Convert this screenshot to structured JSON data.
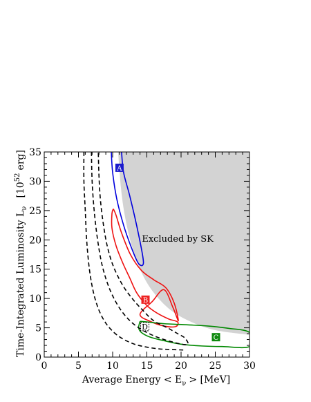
{
  "chart_data": {
    "type": "line",
    "xlabel": "Average Energy  < E",
    "xlabel_sub": "ν",
    "xlabel_unit": ">  [MeV]",
    "ylabel": "Time-Integrated Luminosity   L",
    "ylabel_sub": "ν",
    "ylabel_unit_open": "[10",
    "ylabel_unit_exp": "52",
    "ylabel_unit_close": "erg]",
    "xlim": [
      0,
      30
    ],
    "ylim": [
      0,
      35
    ],
    "x_ticks": [
      "0",
      "5",
      "10",
      "15",
      "20",
      "25",
      "30"
    ],
    "y_ticks": [
      "0",
      "5",
      "10",
      "15",
      "20",
      "25",
      "30",
      "35"
    ],
    "x_tick_values": [
      0,
      5,
      10,
      15,
      20,
      25,
      30
    ],
    "y_tick_values": [
      0,
      5,
      10,
      15,
      20,
      25,
      30,
      35
    ],
    "excluded_region": {
      "label": "Excluded by SK",
      "label_pos": [
        19.5,
        19.7
      ],
      "color": "#d3d3d3",
      "boundary": [
        [
          10.8,
          35
        ],
        [
          11.2,
          29
        ],
        [
          11.8,
          24
        ],
        [
          12.8,
          19
        ],
        [
          14.2,
          14.5
        ],
        [
          16.0,
          11.0
        ],
        [
          18.5,
          8.0
        ],
        [
          21.5,
          6.0
        ],
        [
          25.0,
          4.6
        ],
        [
          30,
          3.8
        ],
        [
          30,
          35
        ]
      ]
    },
    "series": [
      {
        "color": "#0000dd",
        "style": "solid",
        "points": [
          [
            9.8,
            35
          ],
          [
            10.0,
            31.5
          ],
          [
            10.6,
            27
          ],
          [
            11.6,
            22.5
          ],
          [
            12.7,
            18.8
          ],
          [
            13.7,
            16.1
          ],
          [
            14.4,
            15.7
          ],
          [
            14.4,
            17.2
          ],
          [
            13.5,
            22.5
          ],
          [
            12.5,
            27.5
          ],
          [
            11.6,
            31.5
          ],
          [
            11.3,
            35
          ]
        ]
      },
      {
        "color": "#ee1111",
        "style": "solid",
        "points": [
          [
            10.1,
            25.3
          ],
          [
            9.9,
            24.5
          ],
          [
            9.9,
            22
          ],
          [
            10.5,
            19
          ],
          [
            11.5,
            16
          ],
          [
            12.5,
            13.5
          ],
          [
            13.5,
            11
          ],
          [
            15,
            8.8
          ],
          [
            16.5,
            7.5
          ],
          [
            18.2,
            6.5
          ],
          [
            19.5,
            6.0
          ],
          [
            19.2,
            5.2
          ],
          [
            17.5,
            5.3
          ],
          [
            15.5,
            6.1
          ],
          [
            14.0,
            7.3
          ],
          [
            15.8,
            9.5
          ],
          [
            17.5,
            11.5
          ],
          [
            18.8,
            8.5
          ],
          [
            19.6,
            6.2
          ],
          [
            19.0,
            9.2
          ],
          [
            17.8,
            11.8
          ],
          [
            16.0,
            13.2
          ],
          [
            14.2,
            14.8
          ],
          [
            12.6,
            17.5
          ],
          [
            11.3,
            21.2
          ],
          [
            10.5,
            24.2
          ],
          [
            10.1,
            25.3
          ]
        ]
      },
      {
        "color": "#008800",
        "style": "solid",
        "points": [
          [
            14.0,
            6.1
          ],
          [
            13.8,
            5.0
          ],
          [
            14.2,
            4.2
          ],
          [
            15.5,
            3.4
          ],
          [
            17.5,
            2.8
          ],
          [
            20,
            2.2
          ],
          [
            23,
            1.9
          ],
          [
            26,
            1.8
          ],
          [
            30,
            1.8
          ],
          [
            30,
            4.2
          ],
          [
            27,
            4.9
          ],
          [
            24,
            5.3
          ],
          [
            21,
            5.5
          ],
          [
            17.5,
            5.7
          ],
          [
            15,
            6.0
          ],
          [
            14.0,
            6.1
          ]
        ]
      },
      {
        "color": "#000000",
        "style": "dashed",
        "points": [
          [
            6.9,
            35
          ],
          [
            7.0,
            30
          ],
          [
            7.3,
            25
          ],
          [
            7.8,
            20
          ],
          [
            8.5,
            15.5
          ],
          [
            9.6,
            11.5
          ],
          [
            11.1,
            8.2
          ],
          [
            12.9,
            5.8
          ],
          [
            15.0,
            4.2
          ],
          [
            17.5,
            3.0
          ],
          [
            20.8,
            2.1
          ],
          [
            20.6,
            3.2
          ],
          [
            19.5,
            4.0
          ],
          [
            18.0,
            5.0
          ],
          [
            16.0,
            6.2
          ],
          [
            14.4,
            8.0
          ],
          [
            13.0,
            9.8
          ],
          [
            11.5,
            12.2
          ],
          [
            10.1,
            15.5
          ],
          [
            9.2,
            19
          ],
          [
            8.6,
            23
          ],
          [
            8.2,
            27
          ],
          [
            8.0,
            31
          ],
          [
            7.9,
            35
          ]
        ]
      },
      {
        "color": "#000000",
        "style": "dashed",
        "points": [
          [
            5.8,
            35
          ],
          [
            5.8,
            30
          ],
          [
            6.0,
            25
          ],
          [
            6.2,
            20
          ],
          [
            6.6,
            15
          ],
          [
            7.2,
            11
          ],
          [
            8.0,
            8
          ],
          [
            9.0,
            5.8
          ],
          [
            10.2,
            4.2
          ],
          [
            11.5,
            3.1
          ],
          [
            13.2,
            2.2
          ],
          [
            15.0,
            1.7
          ],
          [
            16.8,
            1.4
          ],
          [
            18.5,
            1.3
          ],
          [
            20.5,
            1.2
          ]
        ]
      }
    ],
    "markers": [
      {
        "label": "A",
        "x": 11.0,
        "y": 32.3,
        "color": "#1a1acc",
        "filled": true
      },
      {
        "label": "B",
        "x": 14.8,
        "y": 9.8,
        "color": "#ee2222",
        "filled": true
      },
      {
        "label": "C",
        "x": 25.1,
        "y": 3.4,
        "color": "#0f8a0f",
        "filled": true
      },
      {
        "label": "D",
        "x": 14.7,
        "y": 5.2,
        "color": "#000000",
        "filled": false
      }
    ]
  }
}
